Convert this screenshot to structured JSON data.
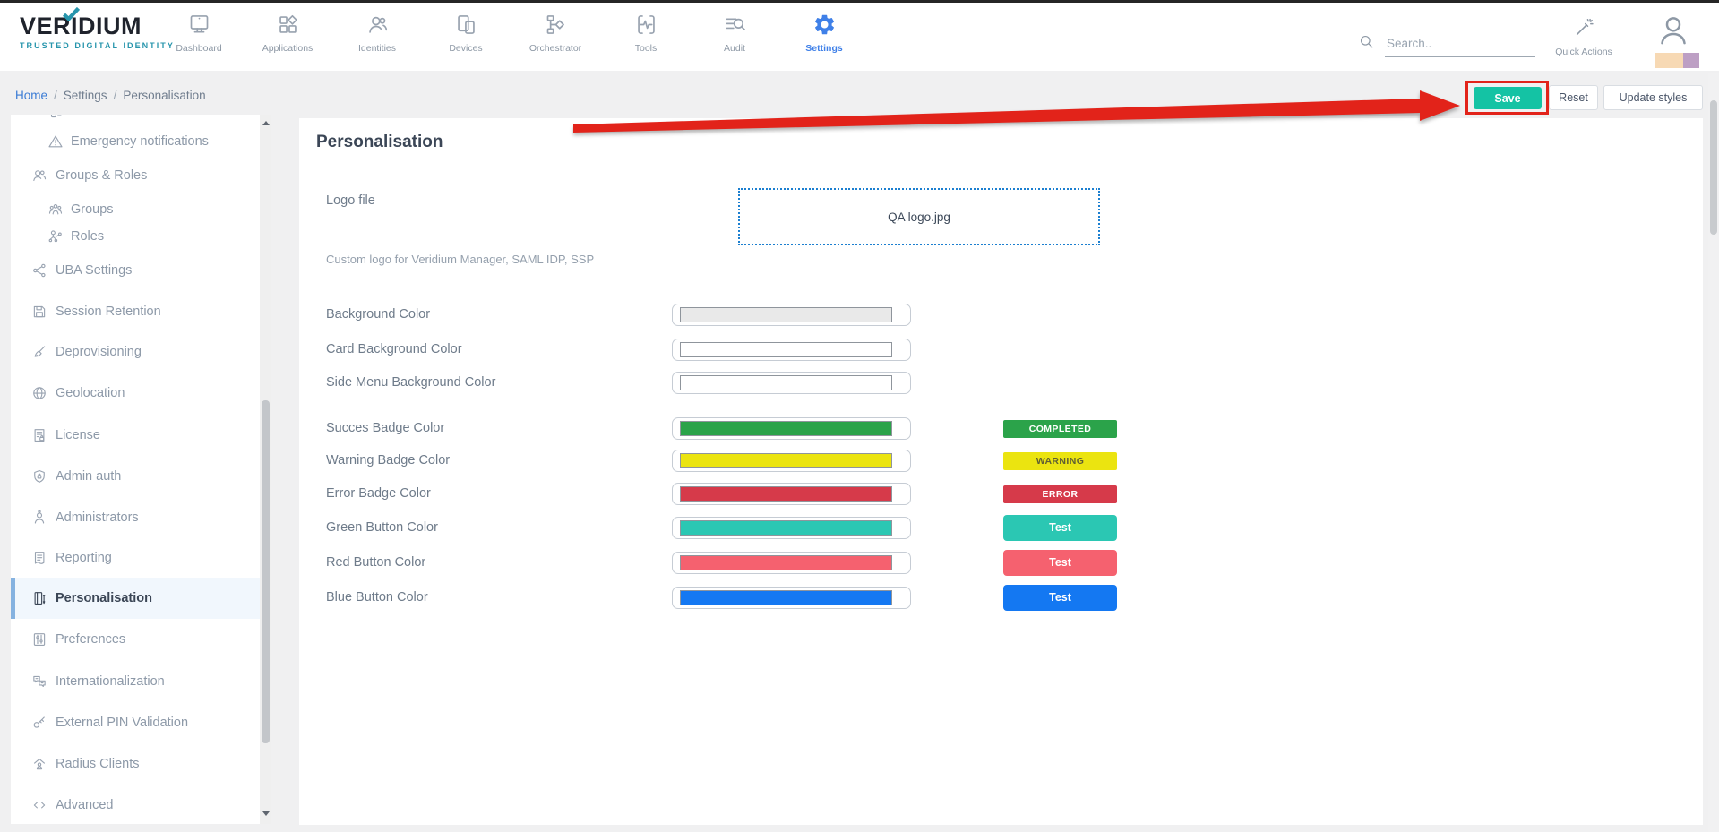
{
  "colors": {
    "accent_teal": "#14c3a4",
    "annotation_red": "#e2231a",
    "active_blue": "#3f80e8",
    "sidebar_active_bar": "#85b2e0",
    "tagline_teal": "#2795ac"
  },
  "header": {
    "brand": "VERIDIUM",
    "tagline": "TRUSTED DIGITAL IDENTITY",
    "nav": [
      {
        "label": "Dashboard",
        "icon": "monitor-icon",
        "active": false
      },
      {
        "label": "Applications",
        "icon": "apps-icon",
        "active": false
      },
      {
        "label": "Identities",
        "icon": "identities-icon",
        "active": false
      },
      {
        "label": "Devices",
        "icon": "devices-icon",
        "active": false
      },
      {
        "label": "Orchestrator",
        "icon": "orchestrator-icon",
        "active": false
      },
      {
        "label": "Tools",
        "icon": "tools-icon",
        "active": false
      },
      {
        "label": "Audit",
        "icon": "audit-icon",
        "active": false
      },
      {
        "label": "Settings",
        "icon": "settings-gear-icon",
        "active": true
      }
    ],
    "search": {
      "placeholder": "Search.."
    },
    "quick_actions_label": "Quick Actions",
    "avatar_strip_colors": [
      "#f7d9b4",
      "#bd9fc4"
    ]
  },
  "breadcrumb": {
    "items": [
      "Home",
      "Settings",
      "Personalisation"
    ]
  },
  "toolbar": {
    "save_label": "Save",
    "reset_label": "Reset",
    "update_styles_label": "Update styles",
    "save_color": "#14c3a4"
  },
  "annotation": {
    "color": "#e2231a",
    "target": "save-button"
  },
  "sidebar": {
    "items": [
      {
        "label": "",
        "icon": "clipped-icon",
        "indent": true,
        "active": false,
        "clipped": true
      },
      {
        "label": "Emergency notifications",
        "icon": "warning-triangle-icon",
        "indent": true,
        "active": false
      },
      {
        "label": "Groups & Roles",
        "icon": "groups-roles-icon",
        "indent": false,
        "active": false
      },
      {
        "label": "Groups",
        "icon": "groups-icon",
        "indent": true,
        "active": false
      },
      {
        "label": "Roles",
        "icon": "roles-icon",
        "indent": true,
        "active": false
      },
      {
        "label": "UBA Settings",
        "icon": "uba-settings-icon",
        "indent": false,
        "active": false
      },
      {
        "label": "Session Retention",
        "icon": "session-retention-icon",
        "indent": false,
        "active": false
      },
      {
        "label": "Deprovisioning",
        "icon": "deprovisioning-icon",
        "indent": false,
        "active": false
      },
      {
        "label": "Geolocation",
        "icon": "geolocation-icon",
        "indent": false,
        "active": false
      },
      {
        "label": "License",
        "icon": "license-icon",
        "indent": false,
        "active": false
      },
      {
        "label": "Admin auth",
        "icon": "admin-auth-icon",
        "indent": false,
        "active": false
      },
      {
        "label": "Administrators",
        "icon": "administrators-icon",
        "indent": false,
        "active": false
      },
      {
        "label": "Reporting",
        "icon": "reporting-icon",
        "indent": false,
        "active": false
      },
      {
        "label": "Personalisation",
        "icon": "personalisation-icon",
        "indent": false,
        "active": true
      },
      {
        "label": "Preferences",
        "icon": "preferences-icon",
        "indent": false,
        "active": false
      },
      {
        "label": "Internationalization",
        "icon": "internationalization-icon",
        "indent": false,
        "active": false
      },
      {
        "label": "External PIN Validation",
        "icon": "external-pin-icon",
        "indent": false,
        "active": false
      },
      {
        "label": "Radius Clients",
        "icon": "radius-clients-icon",
        "indent": false,
        "active": false
      },
      {
        "label": "Advanced",
        "icon": "advanced-icon",
        "indent": false,
        "active": false
      }
    ]
  },
  "main": {
    "title": "Personalisation",
    "logo_file": {
      "label": "Logo file",
      "value": "QA logo.jpg",
      "help": "Custom logo for Veridium Manager, SAML IDP, SSP"
    },
    "color_fields": [
      {
        "label": "Background Color",
        "swatch": "#e9e9e9"
      },
      {
        "label": "Card Background Color",
        "swatch": "#ffffff"
      },
      {
        "label": "Side Menu Background Color",
        "swatch": "#ffffff"
      },
      {
        "label": "Succes Badge Color",
        "swatch": "#2ba34a",
        "preview": {
          "kind": "badge",
          "text": "COMPLETED",
          "bg": "#2ba34a",
          "fg": "#ffffff"
        }
      },
      {
        "label": "Warning Badge Color",
        "swatch": "#ebe410",
        "preview": {
          "kind": "badge",
          "text": "WARNING",
          "bg": "#ebe410",
          "fg": "#5f5f33"
        }
      },
      {
        "label": "Error Badge Color",
        "swatch": "#d63a4a",
        "preview": {
          "kind": "badge",
          "text": "ERROR",
          "bg": "#d63a4a",
          "fg": "#ffffff"
        }
      },
      {
        "label": "Green Button Color",
        "swatch": "#2bc7b3",
        "preview": {
          "kind": "button",
          "text": "Test",
          "bg": "#2bc7b3",
          "fg": "#ffffff"
        }
      },
      {
        "label": "Red Button Color",
        "swatch": "#f5616f",
        "preview": {
          "kind": "button",
          "text": "Test",
          "bg": "#f5616f",
          "fg": "#ffffff"
        }
      },
      {
        "label": "Blue Button Color",
        "swatch": "#1478f2",
        "preview": {
          "kind": "button",
          "text": "Test",
          "bg": "#1478f2",
          "fg": "#ffffff"
        }
      }
    ]
  }
}
